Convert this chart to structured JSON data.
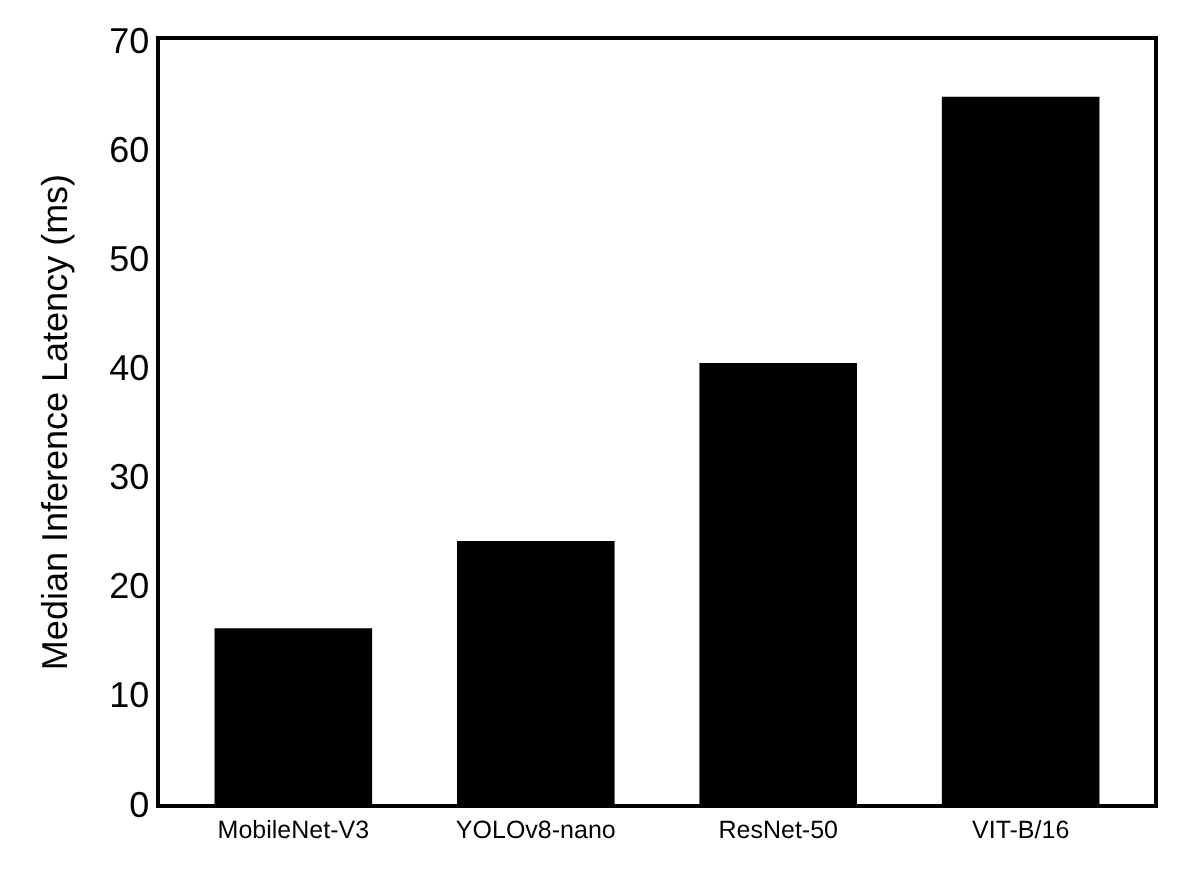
{
  "chart_data": {
    "type": "bar",
    "ylabel": "Median Inference Latency (ms)",
    "categories": [
      "MobileNet-V3",
      "YOLOv8-nano",
      "ResNet-50",
      "VIT-B/16"
    ],
    "values": [
      16.1,
      24.1,
      40.4,
      64.8
    ],
    "color": "#000000",
    "ylim": [
      0,
      70
    ],
    "yticks": [
      0,
      10,
      20,
      30,
      40,
      50,
      60,
      70
    ],
    "grid": false
  }
}
